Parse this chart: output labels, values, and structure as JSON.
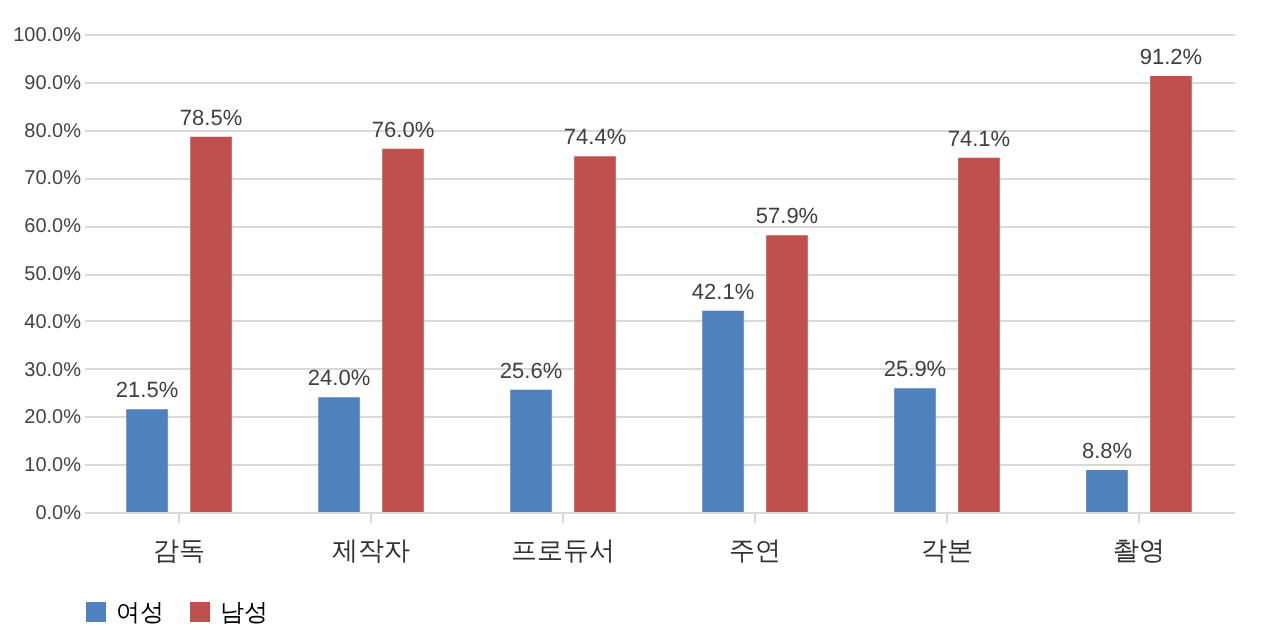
{
  "chart_data": {
    "type": "bar",
    "categories": [
      "감독",
      "제작자",
      "프로듀서",
      "주연",
      "각본",
      "촬영"
    ],
    "series": [
      {
        "name": "여성",
        "color": "#4f81bd",
        "values": [
          21.5,
          24.0,
          25.6,
          42.1,
          25.9,
          8.8
        ],
        "value_labels": [
          "21.5%",
          "24.0%",
          "25.6%",
          "42.1%",
          "25.9%",
          "8.8%"
        ]
      },
      {
        "name": "남성",
        "color": "#c0504d",
        "values": [
          78.5,
          76.0,
          74.4,
          57.9,
          74.1,
          91.2
        ],
        "value_labels": [
          "78.5%",
          "76.0%",
          "74.4%",
          "57.9%",
          "74.1%",
          "91.2%"
        ]
      }
    ],
    "ylim": [
      0,
      100
    ],
    "yticks": [
      {
        "value": 0,
        "label": "0.0%"
      },
      {
        "value": 10,
        "label": "10.0%"
      },
      {
        "value": 20,
        "label": "20.0%"
      },
      {
        "value": 30,
        "label": "30.0%"
      },
      {
        "value": 40,
        "label": "40.0%"
      },
      {
        "value": 50,
        "label": "50.0%"
      },
      {
        "value": 60,
        "label": "60.0%"
      },
      {
        "value": 70,
        "label": "70.0%"
      },
      {
        "value": 80,
        "label": "80.0%"
      },
      {
        "value": 90,
        "label": "90.0%"
      },
      {
        "value": 100,
        "label": "100.0%"
      }
    ],
    "grid": "y",
    "legend": "bottom"
  }
}
